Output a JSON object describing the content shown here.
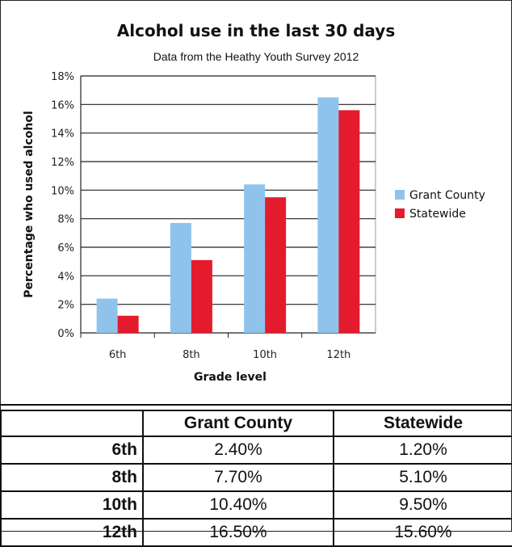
{
  "chart_data": {
    "type": "bar",
    "title": "Alcohol use in the last 30 days",
    "subtitle": "Data from the Heathy Youth Survey 2012",
    "xlabel": "Grade level",
    "ylabel": "Percentage who used alcohol",
    "categories": [
      "6th",
      "8th",
      "10th",
      "12th"
    ],
    "series": [
      {
        "name": "Grant County",
        "values": [
          2.4,
          7.7,
          10.4,
          16.5
        ],
        "color": "#8fc3ec"
      },
      {
        "name": "Statewide",
        "values": [
          1.2,
          5.1,
          9.5,
          15.6
        ],
        "color": "#e31b2d"
      }
    ],
    "ylim": [
      0,
      18
    ],
    "yticks": [
      0,
      2,
      4,
      6,
      8,
      10,
      12,
      14,
      16,
      18
    ],
    "ytick_labels": [
      "0%",
      "2%",
      "4%",
      "6%",
      "8%",
      "10%",
      "12%",
      "14%",
      "16%",
      "18%"
    ],
    "grid": true,
    "legend_position": "right"
  },
  "table": {
    "headers": [
      "",
      "Grant County",
      "Statewide"
    ],
    "rows": [
      {
        "label": "6th",
        "grant": "2.40%",
        "state": "1.20%"
      },
      {
        "label": "8th",
        "grant": "7.70%",
        "state": "5.10%"
      },
      {
        "label": "10th",
        "grant": "10.40%",
        "state": "9.50%"
      },
      {
        "label": "12th",
        "grant": "16.50%",
        "state": "15.60%"
      }
    ]
  }
}
